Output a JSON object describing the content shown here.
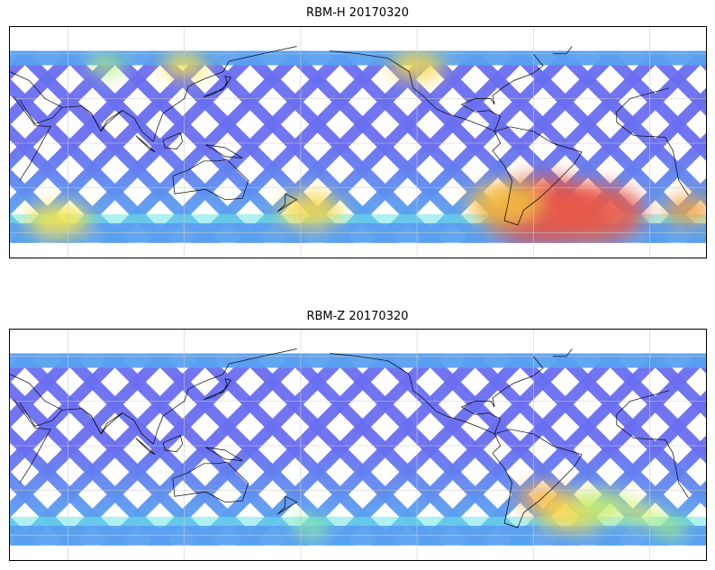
{
  "panels": [
    {
      "title": "RBM-H 20170320",
      "hotspots": [
        {
          "lon": -55,
          "lat": -45,
          "color": "#e0504a",
          "r": 70
        },
        {
          "lon": -30,
          "lat": -47,
          "color": "#e85a4a",
          "r": 60
        },
        {
          "lon": -75,
          "lat": -40,
          "color": "#f4c040",
          "r": 40
        },
        {
          "lon": 20,
          "lat": -45,
          "color": "#f0a040",
          "r": 28
        },
        {
          "lon": -175,
          "lat": -45,
          "color": "#f6d84a",
          "r": 35
        },
        {
          "lon": 55,
          "lat": -52,
          "color": "#f7e34d",
          "r": 35
        },
        {
          "lon": 120,
          "lat": 52,
          "color": "#f4e04a",
          "r": 25
        },
        {
          "lon": -120,
          "lat": 52,
          "color": "#f3d84a",
          "r": 30
        },
        {
          "lon": 80,
          "lat": 52,
          "color": "#aef07a",
          "r": 20
        }
      ]
    },
    {
      "title": "RBM-Z 20170320",
      "hotspots": [
        {
          "lon": -55,
          "lat": -35,
          "color": "#f2a64e",
          "r": 28
        },
        {
          "lon": -40,
          "lat": -45,
          "color": "#f5d64d",
          "r": 38
        },
        {
          "lon": -25,
          "lat": -40,
          "color": "#bfef73",
          "r": 30
        },
        {
          "lon": -5,
          "lat": -45,
          "color": "#d9f06a",
          "r": 20
        },
        {
          "lon": 10,
          "lat": -55,
          "color": "#9fef80",
          "r": 20
        },
        {
          "lon": -175,
          "lat": -55,
          "color": "#8cefa0",
          "r": 20
        }
      ]
    }
  ],
  "colors": {
    "low": "#6a6ef0",
    "mid": "#5aa0f0",
    "cyan": "#6ee6e6",
    "frame": "#000000",
    "coast": "#000000",
    "grid": "#cccccc"
  }
}
